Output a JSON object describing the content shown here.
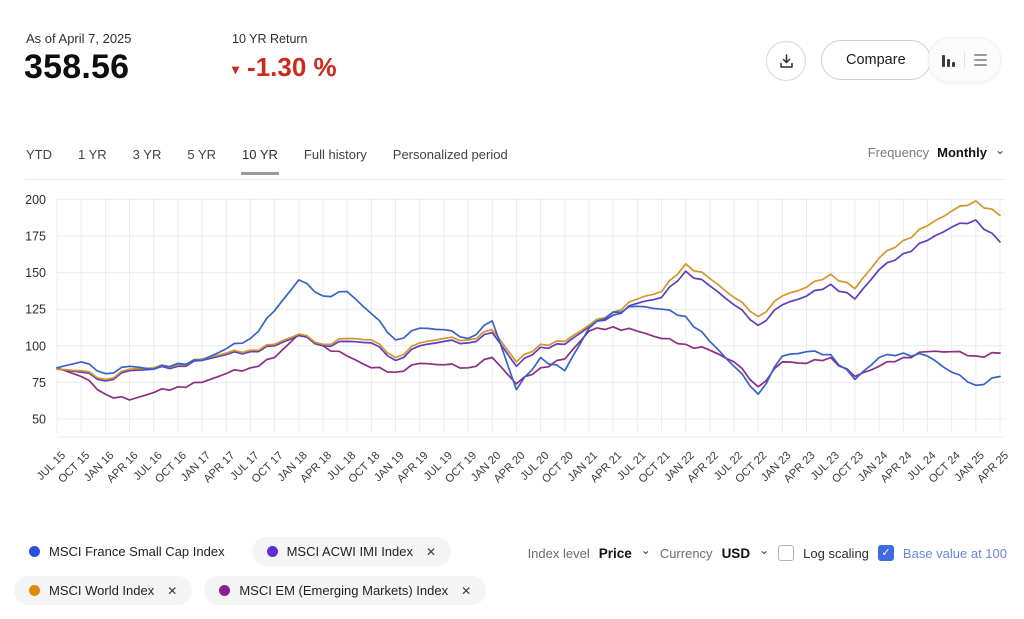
{
  "header": {
    "as_of": "As of April 7, 2025",
    "value": "358.56",
    "return_label": "10 YR Return",
    "return_value": "-1.30 %",
    "return_direction": "down",
    "negative_color": "#cb2a1d"
  },
  "toolbar": {
    "compare_label": "Compare",
    "icons": [
      "download-icon",
      "bar-chart-icon",
      "list-icon"
    ]
  },
  "tabs": {
    "items": [
      "YTD",
      "1 YR",
      "3 YR",
      "5 YR",
      "10 YR",
      "Full history",
      "Personalized period"
    ],
    "active": "10 YR",
    "frequency_label": "Frequency",
    "frequency_value": "Monthly"
  },
  "chart_data": {
    "type": "line",
    "title": "",
    "xlabel": "",
    "ylabel": "",
    "ylim": [
      50,
      205
    ],
    "yticks": [
      50,
      75,
      100,
      125,
      150,
      175,
      200
    ],
    "grid": true,
    "legend_position": "bottom",
    "frequency": "Monthly",
    "categories": [
      "JUL 15",
      "OCT 15",
      "JAN 16",
      "APR 16",
      "JUL 16",
      "OCT 16",
      "JAN 17",
      "APR 17",
      "JUL 17",
      "OCT 17",
      "JAN 18",
      "APR 18",
      "JUL 18",
      "OCT 18",
      "JAN 19",
      "APR 19",
      "JUL 19",
      "OCT 19",
      "JAN 20",
      "APR 20",
      "JUL 20",
      "OCT 20",
      "JAN 21",
      "APR 21",
      "JUL 21",
      "OCT 21",
      "JAN 22",
      "APR 22",
      "JUL 22",
      "OCT 22",
      "JAN 23",
      "APR 23",
      "JUL 23",
      "OCT 23",
      "JAN 24",
      "APR 24",
      "JUL 24",
      "OCT 24",
      "JAN 25",
      "APR 25"
    ],
    "series": [
      {
        "name": "MSCI EM (Emerging Markets) Index",
        "color": "#8c2d86",
        "values": [
          85,
          79,
          67,
          63,
          68,
          72,
          75,
          81,
          85,
          92,
          108,
          100,
          93,
          85,
          82,
          88,
          87,
          85,
          92,
          74,
          85,
          91,
          110,
          113,
          110,
          105,
          101,
          97,
          89,
          72,
          89,
          88,
          92,
          79,
          86,
          92,
          96,
          96,
          93,
          95
        ]
      },
      {
        "name": "MSCI ACWI IMI Index",
        "color": "#5d3ec0",
        "values": [
          84,
          82,
          76,
          83,
          84,
          86,
          90,
          94,
          96,
          100,
          107,
          100,
          103,
          102,
          90,
          100,
          103,
          102,
          109,
          86,
          99,
          101,
          113,
          121,
          129,
          133,
          151,
          141,
          128,
          114,
          128,
          134,
          142,
          132,
          152,
          163,
          172,
          181,
          186,
          171
        ]
      },
      {
        "name": "MSCI World Index",
        "color": "#d7952e",
        "values": [
          84,
          83,
          77,
          84,
          85,
          87,
          91,
          95,
          97,
          101,
          108,
          101,
          105,
          104,
          92,
          102,
          105,
          104,
          111,
          89,
          101,
          103,
          114,
          123,
          132,
          137,
          156,
          146,
          133,
          120,
          134,
          140,
          149,
          139,
          160,
          172,
          182,
          192,
          199,
          189
        ]
      },
      {
        "name": "MSCI France Small Cap Index",
        "color": "#3763c8",
        "values": [
          85,
          89,
          81,
          86,
          84,
          88,
          90,
          98,
          105,
          124,
          145,
          134,
          137,
          122,
          104,
          112,
          111,
          105,
          117,
          70,
          92,
          83,
          112,
          123,
          127,
          125,
          120,
          103,
          86,
          67,
          93,
          96,
          94,
          77,
          92,
          95,
          93,
          82,
          73,
          79
        ]
      }
    ]
  },
  "legend": {
    "items": [
      {
        "label": "MSCI France Small Cap Index",
        "color": "#2c4fd8",
        "removable": false
      },
      {
        "label": "MSCI ACWI IMI Index",
        "color": "#5b2fd4",
        "removable": true
      },
      {
        "label": "MSCI World Index",
        "color": "#e08b0a",
        "removable": true
      },
      {
        "label": "MSCI EM (Emerging Markets) Index",
        "color": "#8b1f8f",
        "removable": true
      }
    ]
  },
  "controls": {
    "index_level_label": "Index level",
    "index_level_value": "Price",
    "currency_label": "Currency",
    "currency_value": "USD",
    "log_scaling_label": "Log scaling",
    "log_scaling_checked": false,
    "base_value_label": "Base value at 100",
    "base_value_checked": true,
    "accent_blue": "#3e6ae3"
  }
}
